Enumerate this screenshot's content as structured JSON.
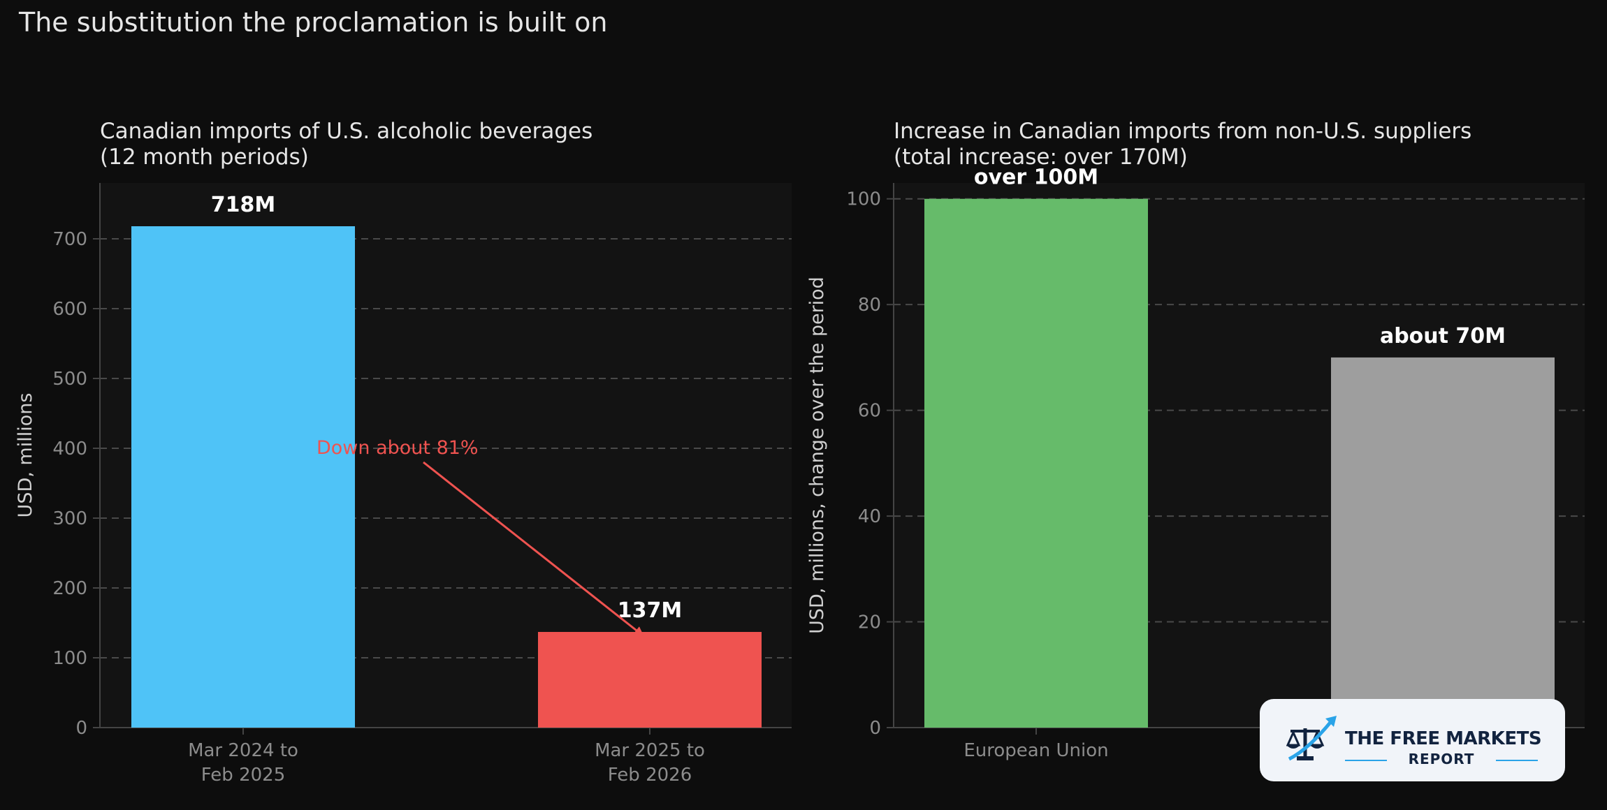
{
  "page": {
    "title": "The substitution the proclamation is built on"
  },
  "colors": {
    "background": "#0d0d0d",
    "panel": "#131313",
    "grid": "#4a4a4a",
    "axis": "#444444",
    "tick_text": "#8c8c8c",
    "label_text": "#d0d0d0",
    "title_text": "#e6e6e6",
    "bar_blue": "#4fc3f7",
    "bar_red": "#ef5350",
    "bar_green": "#66bb6a",
    "bar_gray": "#9e9e9e",
    "annotation": "#ef5350"
  },
  "chart_data": [
    {
      "type": "bar",
      "title": "Canadian imports of U.S. alcoholic beverages",
      "subtitle": "(12 month periods)",
      "categories": [
        [
          "Mar 2024 to",
          "Feb 2025"
        ],
        [
          "Mar 2025 to",
          "Feb 2026"
        ]
      ],
      "values": [
        718,
        137
      ],
      "value_labels": [
        "718M",
        "137M"
      ],
      "bar_colors": [
        "#4fc3f7",
        "#ef5350"
      ],
      "ylabel": "USD, millions",
      "ylim": [
        0,
        780
      ],
      "yticks": [
        0,
        100,
        200,
        300,
        400,
        500,
        600,
        700
      ],
      "grid": true,
      "annotation": {
        "text": "Down about 81%",
        "arrow_from_y": 400,
        "arrow_to_y": 140
      }
    },
    {
      "type": "bar",
      "title": "Increase in Canadian imports from non-U.S. suppliers",
      "subtitle": "(total increase: over 170M)",
      "categories": [
        [
          "European Union"
        ],
        [
          ""
        ]
      ],
      "values": [
        100,
        70
      ],
      "value_labels": [
        "over 100M",
        "about 70M"
      ],
      "bar_colors": [
        "#66bb6a",
        "#9e9e9e"
      ],
      "ylabel": "USD, millions, change over the period",
      "ylim": [
        0,
        103
      ],
      "yticks": [
        0,
        20,
        40,
        60,
        80,
        100
      ],
      "grid": true
    }
  ],
  "logo": {
    "line1": "THE FREE MARKETS",
    "line2": "REPORT",
    "icon": "scales-of-justice-with-upward-arrow-icon"
  }
}
